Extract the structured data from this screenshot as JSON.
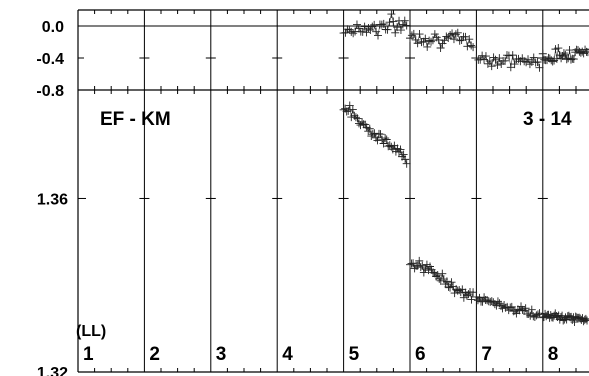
{
  "chart_data": [
    {
      "type": "scatter",
      "panel": "residuals",
      "ylim": [
        -0.8,
        0.2
      ],
      "yticks": [
        {
          "value": 0.0,
          "label": "0.0"
        },
        {
          "value": -0.4,
          "label": "-0.4"
        },
        {
          "value": -0.8,
          "label": "-0.8"
        }
      ],
      "zero_line": 0.0,
      "series": [
        {
          "segment": 5,
          "x_range": [
            5.0,
            5.95
          ],
          "y_mean": [
            -0.05,
            0.02
          ],
          "y_spread": 0.35
        },
        {
          "segment": 6,
          "x_range": [
            6.0,
            6.95
          ],
          "y_mean": [
            -0.12,
            -0.2
          ],
          "y_spread": 0.3
        },
        {
          "segment": 7,
          "x_range": [
            7.0,
            7.95
          ],
          "y_mean": [
            -0.4,
            -0.45
          ],
          "y_spread": 0.25
        },
        {
          "segment": 8,
          "x_range": [
            8.0,
            8.7
          ],
          "y_mean": [
            -0.4,
            -0.3
          ],
          "y_spread": 0.25
        }
      ]
    },
    {
      "type": "scatter",
      "panel": "main",
      "title_left": "EF - KM",
      "title_right": "3 - 14",
      "ylim": [
        1.32,
        1.385
      ],
      "yticks": [
        {
          "value": 1.36,
          "label": "1.36"
        },
        {
          "value": 1.32,
          "label": "1.32"
        }
      ],
      "corner_label": "(LL)",
      "segments": [
        "1",
        "2",
        "3",
        "4",
        "5",
        "6",
        "7",
        "8"
      ],
      "series": [
        {
          "segment": 5,
          "x_range": [
            5.0,
            5.95
          ],
          "y_start": 1.381,
          "y_end": 1.369,
          "y_spread": 0.004
        },
        {
          "segment": 6,
          "x_range": [
            6.0,
            6.95
          ],
          "y_start": 1.346,
          "y_end": 1.337,
          "y_spread": 0.004
        },
        {
          "segment": 7,
          "x_range": [
            7.0,
            7.95
          ],
          "y_start": 1.337,
          "y_end": 1.333,
          "y_spread": 0.003
        },
        {
          "segment": 8,
          "x_range": [
            8.0,
            8.7
          ],
          "y_start": 1.333,
          "y_end": 1.332,
          "y_spread": 0.002
        }
      ]
    }
  ]
}
